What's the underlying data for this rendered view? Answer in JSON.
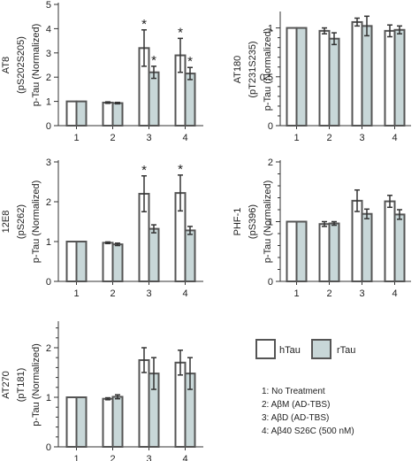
{
  "colors": {
    "hTau": "#ffffff",
    "rTau": "#c8d7d8",
    "stroke": "#555555"
  },
  "legend": {
    "placement": "right",
    "series": [
      {
        "name": "hTau",
        "color": "#ffffff"
      },
      {
        "name": "rTau",
        "color": "#c8d7d8"
      }
    ],
    "conditions": [
      "1: No Treatment",
      "2: AβM (AD-TBS)",
      "3: AβD (AD-TBS)",
      "4: Aβ40 S26C (500 nM)"
    ]
  },
  "chart_data": [
    {
      "type": "bar",
      "antibody": "AT8",
      "epitope": "(pS202S205)",
      "ylabel": "p-Tau (Normalized)",
      "categories": [
        "1",
        "2",
        "3",
        "4"
      ],
      "ylim": [
        0,
        5
      ],
      "yticks": [
        "0",
        "1",
        "2",
        "3",
        "4",
        "5"
      ],
      "series": [
        {
          "name": "hTau",
          "values": [
            1.0,
            0.95,
            3.2,
            2.9
          ],
          "errors": [
            0,
            0.03,
            0.75,
            0.7
          ],
          "stars": [
            false,
            false,
            true,
            true
          ]
        },
        {
          "name": "rTau",
          "values": [
            1.0,
            0.93,
            2.2,
            2.15
          ],
          "errors": [
            0,
            0.03,
            0.25,
            0.25
          ],
          "stars": [
            false,
            false,
            true,
            true
          ]
        }
      ]
    },
    {
      "type": "bar",
      "antibody": "AT180",
      "epitope": "(pT231S235)",
      "ylabel": "p-Tau (Normalized)",
      "categories": [
        "1",
        "2",
        "3",
        "4"
      ],
      "ylim": [
        0,
        1.15
      ],
      "yticks": [
        "0",
        "",
        "",
        "",
        "",
        "0.5",
        "",
        "",
        "",
        "",
        "1"
      ],
      "series": [
        {
          "name": "hTau",
          "values": [
            1.0,
            0.97,
            1.06,
            0.97
          ],
          "errors": [
            0,
            0.03,
            0.04,
            0.06
          ],
          "stars": [
            false,
            false,
            false,
            false
          ]
        },
        {
          "name": "rTau",
          "values": [
            1.0,
            0.89,
            1.02,
            0.98
          ],
          "errors": [
            0,
            0.06,
            0.1,
            0.04
          ],
          "stars": [
            false,
            false,
            false,
            false
          ]
        }
      ]
    },
    {
      "type": "bar",
      "antibody": "12E8",
      "epitope": "(pS262)",
      "ylabel": "p-Tau (Normalized)",
      "categories": [
        "1",
        "2",
        "3",
        "4"
      ],
      "ylim": [
        0,
        3
      ],
      "yticks": [
        "0",
        "1",
        "2",
        "3"
      ],
      "series": [
        {
          "name": "hTau",
          "values": [
            1.0,
            0.97,
            2.2,
            2.22
          ],
          "errors": [
            0,
            0.02,
            0.45,
            0.45
          ],
          "stars": [
            false,
            false,
            true,
            true
          ]
        },
        {
          "name": "rTau",
          "values": [
            1.0,
            0.93,
            1.32,
            1.28
          ],
          "errors": [
            0,
            0.03,
            0.1,
            0.1
          ],
          "stars": [
            false,
            false,
            false,
            false
          ]
        }
      ]
    },
    {
      "type": "bar",
      "antibody": "PHF-1",
      "epitope": "(pS396)",
      "ylabel": "p-Tau (Normalized)",
      "categories": [
        "1",
        "2",
        "3",
        "4"
      ],
      "ylim": [
        0,
        2
      ],
      "yticks": [
        "0",
        "",
        "",
        "",
        "",
        "1",
        "",
        "",
        "",
        "",
        "2"
      ],
      "series": [
        {
          "name": "hTau",
          "values": [
            1.0,
            0.96,
            1.35,
            1.34
          ],
          "errors": [
            0,
            0.04,
            0.18,
            0.1
          ],
          "stars": [
            false,
            false,
            false,
            false
          ]
        },
        {
          "name": "rTau",
          "values": [
            1.0,
            0.97,
            1.13,
            1.12
          ],
          "errors": [
            0,
            0.03,
            0.08,
            0.08
          ],
          "stars": [
            false,
            false,
            false,
            false
          ]
        }
      ]
    },
    {
      "type": "bar",
      "antibody": "AT270",
      "epitope": "(pT181)",
      "ylabel": "p-Tau (Normalized)",
      "categories": [
        "1",
        "2",
        "3",
        "4"
      ],
      "ylim": [
        0,
        2.5
      ],
      "yticks": [
        "0",
        "",
        "",
        "",
        "",
        "1",
        "",
        "",
        "",
        "",
        "2",
        "",
        ""
      ],
      "series": [
        {
          "name": "hTau",
          "values": [
            1.0,
            0.97,
            1.75,
            1.7
          ],
          "errors": [
            0,
            0.02,
            0.25,
            0.25
          ],
          "stars": [
            false,
            false,
            false,
            false
          ]
        },
        {
          "name": "rTau",
          "values": [
            1.0,
            1.01,
            1.48,
            1.48
          ],
          "errors": [
            0,
            0.04,
            0.32,
            0.32
          ],
          "stars": [
            false,
            false,
            false,
            false
          ]
        }
      ]
    }
  ]
}
